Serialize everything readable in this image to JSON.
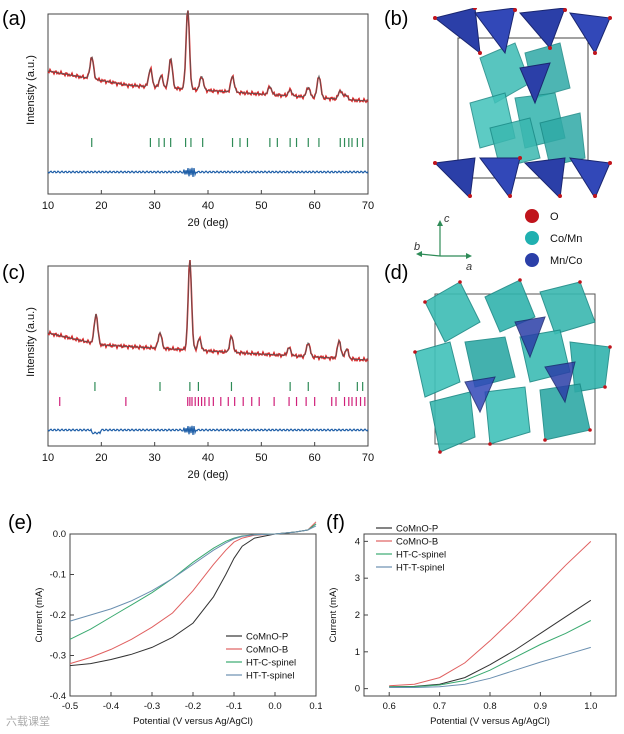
{
  "panel_labels": {
    "a": "(a)",
    "b": "(b)",
    "c": "(c)",
    "d": "(d)",
    "e": "(e)",
    "f": "(f)"
  },
  "xrd_axis": {
    "xlabel": "2θ (deg)",
    "ylabel": "Intensity (a.u.)",
    "ticks": [
      "10",
      "20",
      "30",
      "40",
      "50",
      "60",
      "70"
    ]
  },
  "legend_struct": {
    "o": "O",
    "com": "Co/Mn",
    "mnc": "Mn/Co"
  },
  "axes_labels": {
    "a": "a",
    "b": "b",
    "c": "c"
  },
  "colors": {
    "obs": "#d62728",
    "fit": "#555555",
    "diff": "#1f5fa8",
    "tick_green": "#2e8b57",
    "tick_magenta": "#d0207a",
    "o_atom": "#c0141c",
    "com_atom": "#20b0b0",
    "mnc_atom": "#2b3fa8"
  },
  "watermark": "六载课堂",
  "chart_data": [
    {
      "type": "line",
      "panel": "a",
      "title": "",
      "xlabel": "2θ (deg)",
      "ylabel": "Intensity (a.u.)",
      "xlim": [
        10,
        70
      ],
      "peaks_2theta": [
        18.2,
        29.2,
        31.2,
        33.0,
        36.2,
        38.8,
        44.6,
        51.6,
        55.4,
        58.8,
        60.8,
        64.8,
        65.8
      ],
      "bragg_ticks": [
        18.2,
        29.2,
        30.8,
        31.8,
        33.0,
        35.8,
        36.8,
        39.0,
        44.6,
        46.0,
        47.4,
        51.6,
        53.0,
        55.4,
        56.6,
        58.8,
        60.8,
        64.8,
        65.6,
        66.4,
        67.0,
        68.0,
        69.0
      ]
    },
    {
      "type": "line",
      "panel": "c",
      "title": "",
      "xlabel": "2θ (deg)",
      "ylabel": "Intensity (a.u.)",
      "xlim": [
        10,
        70
      ],
      "peaks_2theta": [
        19.0,
        31.0,
        36.6,
        38.4,
        44.4,
        55.2,
        58.8,
        64.6,
        66.0
      ],
      "bragg_ticks_green": [
        18.8,
        31.0,
        36.6,
        38.2,
        44.4,
        55.4,
        58.8,
        64.6,
        68.0,
        69.0
      ],
      "bragg_ticks_magenta": [
        12.2,
        24.6,
        36.2,
        36.6,
        37.0,
        37.6,
        38.2,
        38.8,
        39.4,
        40.2,
        41.0,
        42.4,
        43.8,
        45.0,
        46.6,
        48.2,
        49.6,
        52.4,
        55.2,
        56.6,
        58.4,
        60.0,
        63.2,
        64.0,
        65.6,
        66.4,
        67.0,
        67.8,
        68.6,
        69.4
      ]
    },
    {
      "type": "line",
      "panel": "e",
      "xlabel": "Potential (V versus Ag/AgCl)",
      "ylabel": "Current (mA)",
      "xlim": [
        -0.5,
        0.1
      ],
      "ylim": [
        -0.4,
        0.0
      ],
      "xticks": [
        "-0.5",
        "-0.4",
        "-0.3",
        "-0.2",
        "-0.1",
        "0.0",
        "0.1"
      ],
      "yticks": [
        "0.0",
        "-0.1",
        "-0.2",
        "-0.3",
        "-0.4"
      ],
      "series": [
        {
          "name": "CoMnO-P",
          "color": "#333333",
          "x": [
            -0.5,
            -0.45,
            -0.4,
            -0.35,
            -0.3,
            -0.25,
            -0.2,
            -0.15,
            -0.12,
            -0.1,
            -0.08,
            -0.05,
            0.0,
            0.05,
            0.08,
            0.1
          ],
          "y": [
            -0.325,
            -0.32,
            -0.31,
            -0.297,
            -0.28,
            -0.255,
            -0.22,
            -0.155,
            -0.1,
            -0.06,
            -0.03,
            -0.01,
            0.0,
            0.005,
            0.01,
            0.025
          ]
        },
        {
          "name": "CoMnO-B",
          "color": "#e06060",
          "x": [
            -0.5,
            -0.45,
            -0.4,
            -0.35,
            -0.3,
            -0.25,
            -0.2,
            -0.15,
            -0.12,
            -0.1,
            -0.08,
            -0.05,
            0.0,
            0.05,
            0.08,
            0.1
          ],
          "y": [
            -0.32,
            -0.305,
            -0.285,
            -0.26,
            -0.23,
            -0.195,
            -0.14,
            -0.075,
            -0.04,
            -0.02,
            -0.01,
            -0.003,
            0.0,
            0.005,
            0.01,
            0.03
          ]
        },
        {
          "name": "HT-C-spinel",
          "color": "#3aaa70",
          "x": [
            -0.5,
            -0.45,
            -0.4,
            -0.35,
            -0.3,
            -0.25,
            -0.2,
            -0.15,
            -0.12,
            -0.1,
            -0.08,
            -0.05,
            0.0,
            0.05,
            0.08,
            0.1
          ],
          "y": [
            -0.26,
            -0.235,
            -0.205,
            -0.175,
            -0.145,
            -0.11,
            -0.07,
            -0.035,
            -0.018,
            -0.01,
            -0.005,
            -0.002,
            0.0,
            0.005,
            0.01,
            0.025
          ]
        },
        {
          "name": "HT-T-spinel",
          "color": "#6a8fb0",
          "x": [
            -0.5,
            -0.45,
            -0.4,
            -0.35,
            -0.3,
            -0.25,
            -0.2,
            -0.15,
            -0.12,
            -0.1,
            -0.08,
            -0.05,
            0.0,
            0.05,
            0.08,
            0.1
          ],
          "y": [
            -0.215,
            -0.2,
            -0.185,
            -0.165,
            -0.14,
            -0.11,
            -0.075,
            -0.04,
            -0.022,
            -0.012,
            -0.006,
            -0.002,
            0.0,
            0.005,
            0.01,
            0.02
          ]
        }
      ]
    },
    {
      "type": "line",
      "panel": "f",
      "xlabel": "Potential (V versus Ag/AgCl)",
      "ylabel": "Current (mA)",
      "xlim": [
        0.55,
        1.05
      ],
      "ylim": [
        -0.2,
        4.2
      ],
      "xticks": [
        "0.6",
        "0.7",
        "0.8",
        "0.9",
        "1.0"
      ],
      "yticks": [
        "0",
        "1",
        "2",
        "3",
        "4"
      ],
      "series": [
        {
          "name": "CoMnO-P",
          "color": "#333333",
          "x": [
            0.6,
            0.65,
            0.7,
            0.75,
            0.8,
            0.85,
            0.9,
            0.95,
            1.0
          ],
          "y": [
            0.05,
            0.06,
            0.12,
            0.3,
            0.65,
            1.05,
            1.5,
            1.95,
            2.4
          ]
        },
        {
          "name": "CoMnO-B",
          "color": "#e06060",
          "x": [
            0.6,
            0.65,
            0.7,
            0.75,
            0.8,
            0.85,
            0.9,
            0.95,
            1.0
          ],
          "y": [
            0.08,
            0.12,
            0.3,
            0.7,
            1.3,
            1.95,
            2.65,
            3.35,
            4.0
          ]
        },
        {
          "name": "HT-C-spinel",
          "color": "#3aaa70",
          "x": [
            0.6,
            0.65,
            0.7,
            0.75,
            0.8,
            0.85,
            0.9,
            0.95,
            1.0
          ],
          "y": [
            0.05,
            0.05,
            0.1,
            0.22,
            0.5,
            0.85,
            1.2,
            1.5,
            1.85
          ]
        },
        {
          "name": "HT-T-spinel",
          "color": "#6a8fb0",
          "x": [
            0.6,
            0.65,
            0.7,
            0.75,
            0.8,
            0.85,
            0.9,
            0.95,
            1.0
          ],
          "y": [
            0.03,
            0.03,
            0.05,
            0.12,
            0.28,
            0.5,
            0.72,
            0.92,
            1.12
          ]
        }
      ]
    }
  ]
}
